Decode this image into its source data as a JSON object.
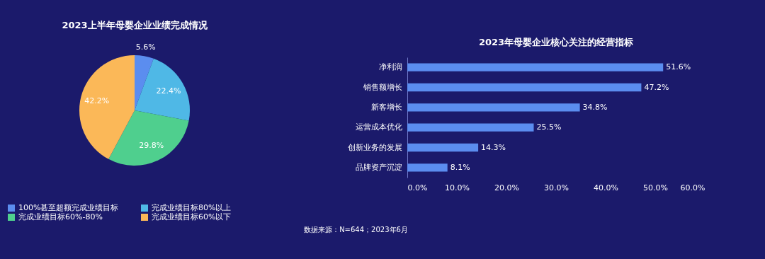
{
  "chart_data": [
    {
      "type": "pie",
      "title": "2023上半年母婴企业业绩完成情况",
      "categories": [
        "100%甚至超额完成业绩目标",
        "完成业绩目标80%以上",
        "完成业绩目标60%-80%",
        "完成业绩目标60%以下"
      ],
      "values": [
        5.6,
        22.4,
        29.8,
        42.2
      ],
      "value_labels": [
        "5.6%",
        "22.4%",
        "29.8%",
        "42.2%"
      ],
      "colors": [
        "#5b8def",
        "#4fb8e6",
        "#4fcf8e",
        "#fbb858"
      ],
      "legend": "bottom",
      "annotations": [
        "数据来源：N=644；2023年6月"
      ]
    },
    {
      "type": "bar",
      "orientation": "horizontal",
      "title": "2023年母婴企业核心关注的经营指标",
      "categories": [
        "净利润",
        "销售额增长",
        "新客增长",
        "运营成本优化",
        "创新业务的发展",
        "品牌资产沉淀"
      ],
      "values": [
        51.6,
        47.2,
        34.8,
        25.5,
        14.3,
        8.1
      ],
      "value_labels": [
        "51.6%",
        "47.2%",
        "34.8%",
        "25.5%",
        "14.3%",
        "8.1%"
      ],
      "color": "#5b8def",
      "xlim": [
        0,
        60
      ],
      "xticks": [
        {
          "value": 0,
          "label": "0.0%"
        },
        {
          "value": 10,
          "label": "10.0%"
        },
        {
          "value": 20,
          "label": "20.0%"
        },
        {
          "value": 30,
          "label": "30.0%"
        },
        {
          "value": 40,
          "label": "40.0%"
        },
        {
          "value": 50,
          "label": "50.0%"
        },
        {
          "value": 60,
          "label": "60.0%"
        }
      ]
    }
  ]
}
